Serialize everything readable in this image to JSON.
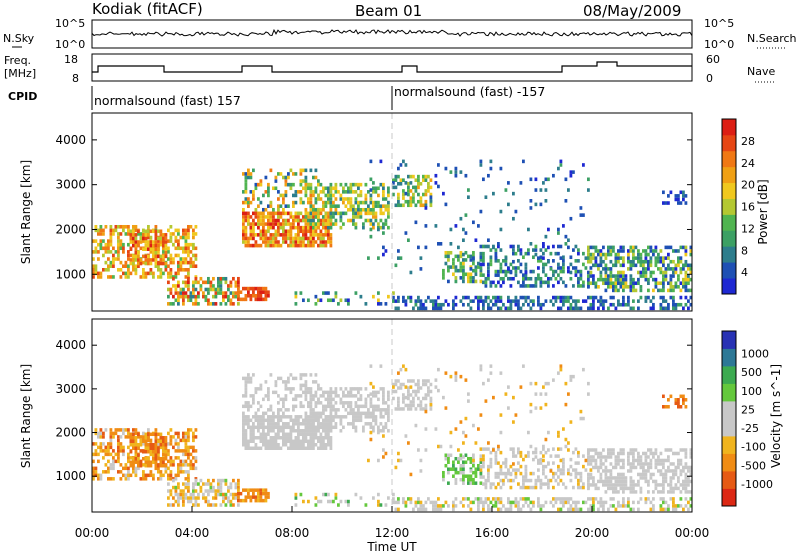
{
  "header": {
    "station": "Kodiak (fitACF)",
    "beam": "Beam 01",
    "date": "08/May/2009"
  },
  "strip_top": {
    "left_label": "N.Sky",
    "left_ticks": [
      "10^5",
      "10^0"
    ],
    "right_label": "N.Search",
    "right_ticks": [
      "10^5",
      "10^0"
    ]
  },
  "strip_freq": {
    "left_label_1": "Freq.",
    "left_label_2": "[MHz]",
    "left_ticks": [
      "18",
      "8"
    ],
    "right_label": "Nave",
    "right_ticks": [
      "60",
      "0"
    ]
  },
  "cpid": {
    "label": "CPID",
    "seg1": "normalsound (fast) 157",
    "seg2": "normalsound (fast) -157"
  },
  "colors": {
    "power": [
      "#1e28d2",
      "#1e50b4",
      "#2d7d8c",
      "#3ca064",
      "#50b450",
      "#b4c832",
      "#f0c81e",
      "#f0a014",
      "#f07814",
      "#e64614",
      "#dc1e14"
    ],
    "velocity": [
      "#2832b4",
      "#2d7896",
      "#3caa50",
      "#64c83c",
      "#c8c8c8",
      "#c8c8c8",
      "#f0b41e",
      "#f08c14",
      "#e65a14",
      "#dc2814"
    ]
  },
  "chart_data": [
    {
      "type": "heatmap",
      "quantity": "Power",
      "xlabel": "",
      "ylabel": "Slant Range [km]",
      "ylim": [
        180,
        4600
      ],
      "xlim": [
        "00:00",
        "24:00"
      ],
      "yticks": [
        "1000",
        "2000",
        "3000",
        "4000"
      ],
      "colorbar_label": "Power [dB]",
      "colorbar_ticks": [
        "28",
        "24",
        "20",
        "16",
        "12",
        "8",
        "4"
      ]
    },
    {
      "type": "heatmap",
      "quantity": "Velocity",
      "xlabel": "Time UT",
      "ylabel": "Slant Range [km]",
      "ylim": [
        180,
        4600
      ],
      "xlim": [
        "00:00",
        "24:00"
      ],
      "xticks": [
        "00:00",
        "04:00",
        "08:00",
        "12:00",
        "16:00",
        "20:00",
        "00:00"
      ],
      "yticks": [
        "1000",
        "2000",
        "3000",
        "4000"
      ],
      "colorbar_label": "Velocity [m s^-1]",
      "colorbar_ticks": [
        "1000",
        "500",
        "100",
        "25",
        "-25",
        "-100",
        "-500",
        "-1000"
      ]
    }
  ]
}
